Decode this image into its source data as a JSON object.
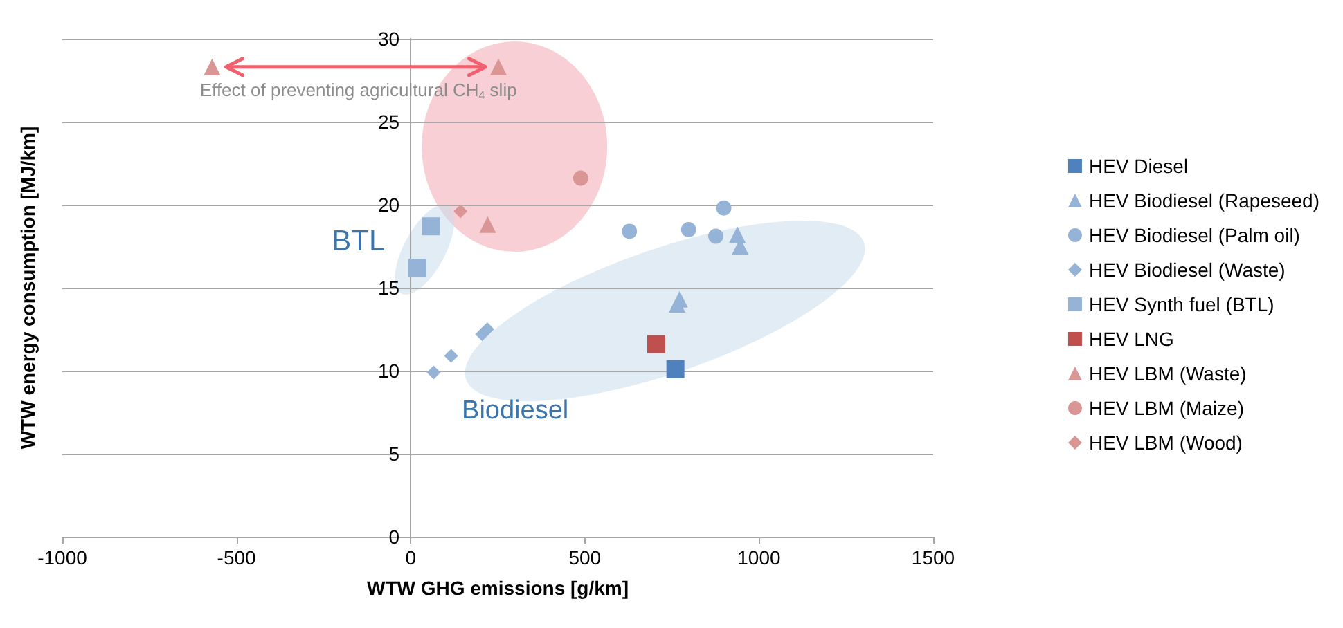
{
  "chart_data": {
    "type": "scatter",
    "xlabel": "WTW GHG emissions [g/km]",
    "ylabel": "WTW energy consumption [MJ/km]",
    "xlim": [
      -1000,
      1500
    ],
    "xticks": [
      -1000,
      -500,
      0,
      500,
      1000,
      1500
    ],
    "ylim": [
      0,
      30
    ],
    "yticks": [
      0,
      5,
      10,
      15,
      20,
      25,
      30
    ],
    "grid": "y",
    "legend": "right",
    "annotations": [
      "Effect of preventing agricultural CH$_{4}$ slip",
      "BTL",
      "Biodiesel"
    ],
    "series": [
      {
        "name": "HEV Diesel",
        "color": "#4f81bd",
        "marker": "square",
        "x": [
          760
        ],
        "values": [
          10.1
        ]
      },
      {
        "name": "HEV Biodiesel (Rapeseed)",
        "color": "#95b3d7",
        "marker": "triangle",
        "x": [
          765,
          772,
          938,
          946
        ],
        "values": [
          14.0,
          14.3,
          18.2,
          17.5
        ]
      },
      {
        "name": "HEV Biodiesel (Palm oil)",
        "color": "#95b3d7",
        "marker": "circle",
        "x": [
          628,
          798,
          876,
          899
        ],
        "values": [
          18.4,
          18.5,
          18.1,
          19.8
        ]
      },
      {
        "name": "HEV Biodiesel (Waste)",
        "color": "#95b3d7",
        "marker": "diamond",
        "x": [
          66,
          116,
          205,
          220
        ],
        "values": [
          9.9,
          10.9,
          12.2,
          12.5
        ]
      },
      {
        "name": "HEV Synth fuel (BTL)",
        "color": "#95b3d7",
        "marker": "square",
        "x": [
          58,
          19
        ],
        "values": [
          18.7,
          16.2
        ]
      },
      {
        "name": "HEV LNG",
        "color": "#c0504d",
        "marker": "square",
        "x": [
          705
        ],
        "values": [
          11.6
        ]
      },
      {
        "name": "HEV LBM (Waste)",
        "color": "#d99694",
        "marker": "triangle",
        "x": [
          -570,
          252,
          221
        ],
        "values": [
          28.3,
          28.3,
          18.8
        ]
      },
      {
        "name": "HEV LBM (Maize)",
        "color": "#d99694",
        "marker": "circle",
        "x": [
          488
        ],
        "values": [
          21.6
        ]
      },
      {
        "name": "HEV LBM (Wood)",
        "color": "#d99694",
        "marker": "diamond",
        "x": [
          143
        ],
        "values": [
          19.6
        ]
      }
    ]
  }
}
